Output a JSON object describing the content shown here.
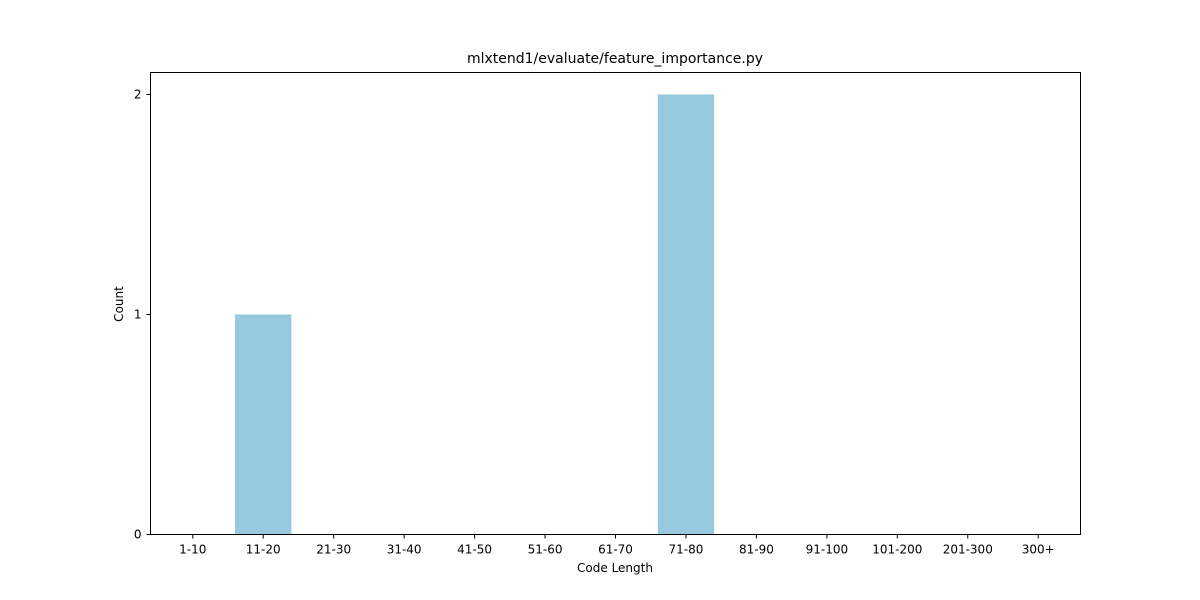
{
  "chart_data": {
    "type": "bar",
    "title": "mlxtend1/evaluate/feature_importance.py",
    "xlabel": "Code Length",
    "ylabel": "Count",
    "categories": [
      "1-10",
      "11-20",
      "21-30",
      "31-40",
      "41-50",
      "51-60",
      "61-70",
      "71-80",
      "81-90",
      "91-100",
      "101-200",
      "201-300",
      "300+"
    ],
    "values": [
      0,
      1,
      0,
      0,
      0,
      0,
      0,
      2,
      0,
      0,
      0,
      0,
      0
    ],
    "ylim": [
      0,
      2.1
    ],
    "yticks": [
      "0",
      "1",
      "2"
    ],
    "bar_color": "#96c9de",
    "grid": false,
    "legend": "none"
  }
}
